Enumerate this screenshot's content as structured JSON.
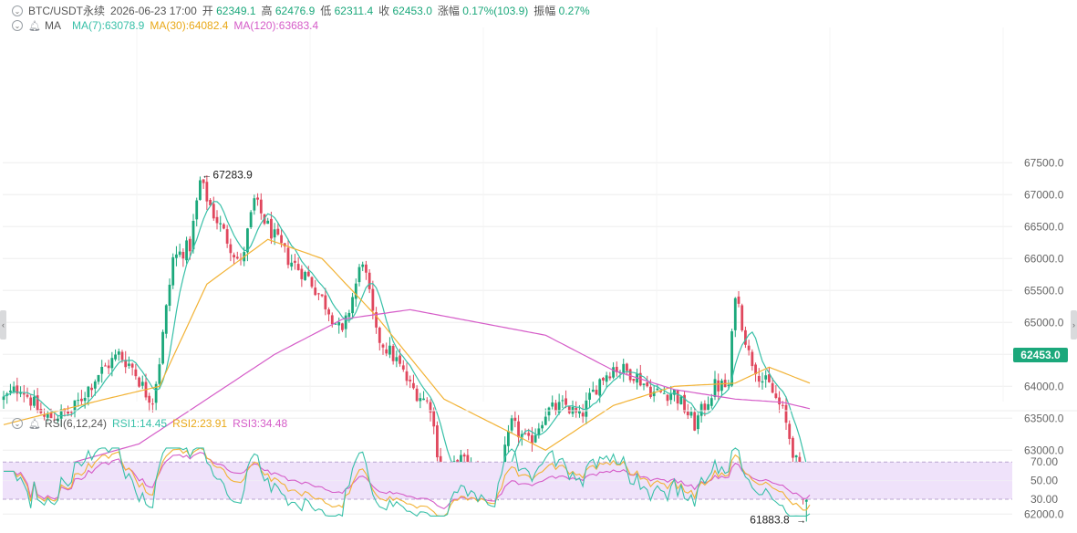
{
  "header": {
    "symbol": "BTC/USDT永续",
    "datetime": "2026-06-23 17:00",
    "open_label": "开",
    "open": "62349.1",
    "high_label": "高",
    "high": "62476.9",
    "low_label": "低",
    "low": "62311.4",
    "close_label": "收",
    "close": "62453.0",
    "change_label": "涨幅",
    "change": "0.17%(103.9)",
    "amp_label": "振幅",
    "amp": "0.27%"
  },
  "ma_legend": {
    "name": "MA",
    "ma7": "MA(7):63078.9",
    "ma30": "MA(30):64082.4",
    "ma120": "MA(120):63683.4"
  },
  "rsi_legend": {
    "name": "RSI(6,12,24)",
    "rsi1": "RSI1:14.45",
    "rsi2": "RSI2:23.91",
    "rsi3": "RSI3:34.48"
  },
  "annotations": {
    "high_marker": "67283.9",
    "low_marker": "61883.8"
  },
  "current_price_tag": "62453.0",
  "colors": {
    "up": "#1ba87b",
    "down": "#e0475d",
    "ma7": "#38c0a8",
    "ma30": "#f2b234",
    "ma120": "#d55cc8",
    "rsi1": "#38c0a8",
    "rsi2": "#f2b234",
    "rsi3": "#d55cc8",
    "rsi_band": "#efe2fa",
    "grid": "#eeeeee"
  },
  "chart_data": [
    {
      "type": "candlestick",
      "yticks": [
        "67500.0",
        "67000.0",
        "66500.0",
        "66000.0",
        "65500.0",
        "65000.0",
        "64500.0",
        "64000.0",
        "63500.0",
        "63000.0",
        "62000.0"
      ],
      "ylim": [
        61700,
        67600
      ],
      "current_price": 62453.0,
      "anchors": [
        [
          0,
          63800
        ],
        [
          5,
          64000
        ],
        [
          12,
          63500
        ],
        [
          20,
          63600
        ],
        [
          28,
          64200
        ],
        [
          34,
          64500
        ],
        [
          38,
          64300
        ],
        [
          42,
          63900
        ],
        [
          44,
          63800
        ],
        [
          46,
          64400
        ],
        [
          50,
          66000
        ],
        [
          55,
          66200
        ],
        [
          58,
          67200
        ],
        [
          62,
          66700
        ],
        [
          66,
          66300
        ],
        [
          70,
          65900
        ],
        [
          74,
          66900
        ],
        [
          78,
          66500
        ],
        [
          84,
          66000
        ],
        [
          90,
          65700
        ],
        [
          96,
          65200
        ],
        [
          100,
          64800
        ],
        [
          106,
          66000
        ],
        [
          110,
          64800
        ],
        [
          116,
          64400
        ],
        [
          120,
          64000
        ],
        [
          126,
          63700
        ],
        [
          130,
          62300
        ],
        [
          134,
          62900
        ],
        [
          140,
          62600
        ],
        [
          145,
          62300
        ],
        [
          150,
          63400
        ],
        [
          155,
          63100
        ],
        [
          160,
          63600
        ],
        [
          166,
          63700
        ],
        [
          170,
          63500
        ],
        [
          176,
          64100
        ],
        [
          180,
          64300
        ],
        [
          186,
          64200
        ],
        [
          192,
          63900
        ],
        [
          198,
          63900
        ],
        [
          204,
          63400
        ],
        [
          210,
          64000
        ],
        [
          214,
          64000
        ],
        [
          216,
          65500
        ],
        [
          220,
          64500
        ],
        [
          224,
          64100
        ],
        [
          226,
          64000
        ],
        [
          230,
          63600
        ],
        [
          234,
          62800
        ],
        [
          236,
          62200
        ],
        [
          238,
          62450
        ]
      ],
      "ma30_anchors": [
        [
          0,
          63400
        ],
        [
          30,
          63800
        ],
        [
          46,
          64000
        ],
        [
          60,
          65600
        ],
        [
          78,
          66300
        ],
        [
          94,
          66000
        ],
        [
          110,
          65100
        ],
        [
          130,
          63800
        ],
        [
          145,
          63400
        ],
        [
          160,
          63000
        ],
        [
          180,
          63700
        ],
        [
          198,
          64000
        ],
        [
          216,
          64050
        ],
        [
          226,
          64300
        ],
        [
          238,
          64050
        ]
      ],
      "ma120_anchors": [
        [
          0,
          62650
        ],
        [
          20,
          62800
        ],
        [
          40,
          63100
        ],
        [
          60,
          63800
        ],
        [
          80,
          64500
        ],
        [
          100,
          65050
        ],
        [
          120,
          65200
        ],
        [
          140,
          65000
        ],
        [
          160,
          64800
        ],
        [
          180,
          64250
        ],
        [
          198,
          63950
        ],
        [
          216,
          63800
        ],
        [
          230,
          63750
        ],
        [
          238,
          63650
        ]
      ],
      "markers": [
        {
          "index": 58,
          "value": 67283.9,
          "label": "67283.9",
          "side": "right"
        },
        {
          "index": 237,
          "value": 61883.8,
          "label": "61883.8",
          "side": "left"
        }
      ]
    },
    {
      "type": "line",
      "name": "RSI(6,12,24)",
      "yticks": [
        "70.00",
        "50.00",
        "30.00"
      ],
      "band": [
        30,
        70
      ],
      "ylim": [
        26,
        80
      ],
      "last_values": {
        "RSI1": 14.45,
        "RSI2": 23.91,
        "RSI3": 34.48
      }
    }
  ]
}
